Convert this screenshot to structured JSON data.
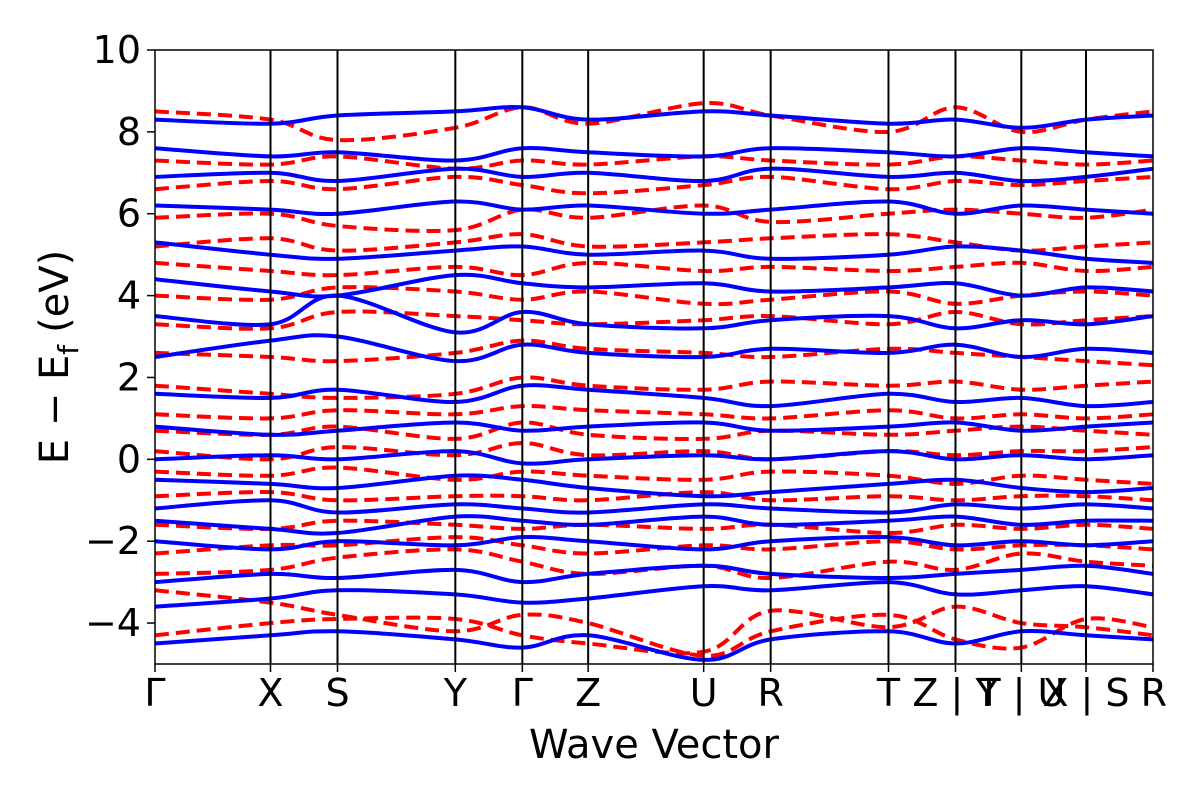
{
  "chart_data": {
    "type": "line",
    "xlabel": "Wave Vector",
    "ylabel": "E − E",
    "ylabel_subscript": "f",
    "ylabel_unit": "(eV)",
    "ylim": [
      -5,
      10
    ],
    "yticks": [
      {
        "value": -4,
        "label": "−4"
      },
      {
        "value": -2,
        "label": "−2"
      },
      {
        "value": 0,
        "label": "0"
      },
      {
        "value": 2,
        "label": "2"
      },
      {
        "value": 4,
        "label": "4"
      },
      {
        "value": 6,
        "label": "6"
      },
      {
        "value": 8,
        "label": "8"
      },
      {
        "value": 10,
        "label": "10"
      }
    ],
    "kpoints": [
      {
        "label": "Γ",
        "pos": 0.0
      },
      {
        "label": "X",
        "pos": 1.0
      },
      {
        "label": "S",
        "pos": 1.58
      },
      {
        "label": "Y",
        "pos": 2.6
      },
      {
        "label": "Γ",
        "pos": 3.18
      },
      {
        "label": "Z",
        "pos": 3.75
      },
      {
        "label": "U",
        "pos": 4.75
      },
      {
        "label": "R",
        "pos": 5.33
      },
      {
        "label": "T",
        "pos": 6.35
      },
      {
        "label": "Z | Y",
        "pos": 6.93
      },
      {
        "label": "T | U",
        "pos": 7.5
      },
      {
        "label": "X | S",
        "pos": 8.06
      },
      {
        "label": "R",
        "pos": 8.64
      }
    ],
    "series": [
      {
        "style": "dashed",
        "color": "#ff0000",
        "bands": [
          [
            -4.3,
            -4.0,
            -3.9,
            -3.9,
            -4.3,
            -4.5,
            -4.7,
            -3.7,
            -4.1,
            -3.6,
            -4.0,
            -4.1,
            -4.3
          ],
          [
            -3.2,
            -3.5,
            -3.8,
            -4.2,
            -3.8,
            -4.0,
            -4.8,
            -4.2,
            -3.8,
            -4.4,
            -4.6,
            -3.9,
            -4.1
          ],
          [
            -2.8,
            -2.7,
            -2.4,
            -2.2,
            -2.5,
            -2.8,
            -2.6,
            -2.9,
            -2.5,
            -2.7,
            -2.3,
            -2.5,
            -2.6
          ],
          [
            -2.3,
            -2.1,
            -2.1,
            -1.9,
            -2.1,
            -2.3,
            -2.1,
            -2.2,
            -2.0,
            -2.2,
            -2.1,
            -2.1,
            -2.2
          ],
          [
            -1.6,
            -1.7,
            -1.5,
            -1.6,
            -1.7,
            -1.6,
            -1.7,
            -1.6,
            -1.8,
            -1.6,
            -1.7,
            -1.6,
            -1.7
          ],
          [
            -0.9,
            -0.8,
            -1.0,
            -0.9,
            -0.9,
            -1.0,
            -0.8,
            -1.0,
            -0.9,
            -1.0,
            -0.9,
            -0.9,
            -1.0
          ],
          [
            -0.3,
            -0.4,
            -0.2,
            -0.5,
            -0.3,
            -0.4,
            -0.5,
            -0.3,
            -0.4,
            -0.6,
            -0.4,
            -0.5,
            -0.6
          ],
          [
            0.2,
            0.0,
            0.3,
            0.1,
            0.4,
            0.1,
            0.2,
            0.0,
            0.2,
            0.1,
            0.2,
            0.2,
            0.3
          ],
          [
            0.7,
            0.6,
            0.8,
            0.5,
            0.9,
            0.6,
            0.5,
            0.7,
            0.6,
            0.7,
            0.8,
            0.7,
            0.6
          ],
          [
            1.1,
            1.0,
            1.2,
            1.1,
            1.3,
            1.2,
            1.1,
            1.0,
            1.2,
            1.0,
            1.1,
            1.0,
            1.1
          ],
          [
            1.8,
            1.6,
            1.5,
            1.6,
            2.0,
            1.8,
            1.7,
            1.9,
            1.8,
            1.9,
            1.7,
            1.8,
            1.9
          ],
          [
            2.6,
            2.5,
            2.4,
            2.6,
            2.9,
            2.7,
            2.6,
            2.5,
            2.7,
            2.6,
            2.5,
            2.4,
            2.3
          ],
          [
            3.3,
            3.2,
            3.6,
            3.5,
            3.4,
            3.3,
            3.4,
            3.5,
            3.3,
            3.6,
            3.3,
            3.4,
            3.5
          ],
          [
            4.0,
            3.9,
            4.2,
            4.1,
            3.9,
            4.1,
            3.8,
            3.9,
            4.1,
            3.8,
            4.0,
            4.1,
            4.0
          ],
          [
            4.8,
            4.6,
            4.5,
            4.7,
            4.5,
            4.8,
            4.6,
            4.7,
            4.6,
            4.7,
            4.8,
            4.6,
            4.7
          ],
          [
            5.2,
            5.4,
            5.1,
            5.3,
            5.5,
            5.2,
            5.3,
            5.4,
            5.5,
            5.3,
            5.1,
            5.2,
            5.3
          ],
          [
            5.9,
            6.0,
            5.7,
            5.6,
            6.1,
            5.9,
            6.2,
            5.8,
            6.0,
            6.1,
            6.0,
            5.9,
            6.1
          ],
          [
            6.6,
            6.8,
            6.6,
            6.9,
            6.7,
            6.5,
            6.7,
            6.9,
            6.6,
            6.8,
            6.7,
            6.8,
            6.9
          ],
          [
            7.3,
            7.2,
            7.4,
            7.1,
            7.3,
            7.2,
            7.4,
            7.3,
            7.2,
            7.4,
            7.3,
            7.2,
            7.3
          ],
          [
            8.5,
            8.3,
            7.8,
            8.1,
            8.6,
            8.2,
            8.7,
            8.4,
            8.0,
            8.6,
            8.0,
            8.3,
            8.5
          ]
        ]
      },
      {
        "style": "solid",
        "color": "#0000ff",
        "bands": [
          [
            -4.5,
            -4.3,
            -4.2,
            -4.4,
            -4.6,
            -4.3,
            -4.9,
            -4.4,
            -4.2,
            -4.5,
            -4.2,
            -4.3,
            -4.4
          ],
          [
            -3.6,
            -3.4,
            -3.2,
            -3.3,
            -3.5,
            -3.4,
            -3.1,
            -3.2,
            -3.0,
            -3.3,
            -3.2,
            -3.1,
            -3.3
          ],
          [
            -3.0,
            -2.8,
            -2.9,
            -2.7,
            -3.0,
            -2.8,
            -2.6,
            -2.8,
            -2.9,
            -2.8,
            -2.7,
            -2.6,
            -2.8
          ],
          [
            -2.0,
            -2.2,
            -2.0,
            -2.1,
            -1.9,
            -2.0,
            -2.2,
            -2.0,
            -1.9,
            -2.1,
            -2.0,
            -2.1,
            -2.0
          ],
          [
            -1.5,
            -1.7,
            -1.8,
            -1.4,
            -1.5,
            -1.6,
            -1.4,
            -1.6,
            -1.5,
            -1.4,
            -1.6,
            -1.5,
            -1.5
          ],
          [
            -1.2,
            -1.0,
            -1.3,
            -1.1,
            -1.2,
            -1.3,
            -1.1,
            -1.2,
            -1.3,
            -1.1,
            -1.2,
            -1.1,
            -1.2
          ],
          [
            -0.5,
            -0.6,
            -0.7,
            -0.4,
            -0.5,
            -0.7,
            -0.9,
            -0.8,
            -0.6,
            -0.5,
            -0.7,
            -0.8,
            -0.7
          ],
          [
            0.0,
            0.1,
            0.0,
            0.2,
            -0.1,
            0.0,
            0.1,
            0.0,
            0.2,
            0.0,
            0.1,
            0.0,
            0.1
          ],
          [
            0.8,
            0.6,
            0.7,
            0.9,
            0.7,
            0.8,
            0.9,
            0.7,
            0.8,
            0.9,
            0.7,
            0.8,
            0.9
          ],
          [
            1.6,
            1.5,
            1.7,
            1.4,
            1.8,
            1.7,
            1.5,
            1.3,
            1.6,
            1.4,
            1.5,
            1.3,
            1.4
          ],
          [
            2.5,
            2.9,
            3.0,
            2.4,
            2.8,
            2.6,
            2.5,
            2.7,
            2.6,
            2.8,
            2.5,
            2.7,
            2.6
          ],
          [
            3.5,
            3.3,
            4.0,
            3.1,
            3.6,
            3.3,
            3.2,
            3.4,
            3.5,
            3.2,
            3.4,
            3.3,
            3.5
          ],
          [
            4.4,
            4.1,
            4.0,
            4.5,
            4.3,
            4.2,
            4.3,
            4.1,
            4.2,
            4.3,
            4.0,
            4.2,
            4.1
          ],
          [
            5.3,
            5.0,
            4.9,
            5.1,
            5.2,
            5.0,
            5.1,
            4.9,
            5.0,
            5.2,
            5.1,
            4.9,
            4.8
          ],
          [
            6.2,
            6.1,
            6.0,
            6.3,
            6.1,
            6.2,
            6.0,
            6.1,
            6.3,
            6.0,
            6.2,
            6.1,
            6.0
          ],
          [
            6.9,
            7.0,
            6.8,
            7.1,
            6.9,
            7.0,
            6.8,
            7.1,
            6.9,
            7.0,
            6.8,
            6.9,
            7.1
          ],
          [
            7.6,
            7.4,
            7.5,
            7.3,
            7.6,
            7.5,
            7.4,
            7.6,
            7.5,
            7.4,
            7.6,
            7.5,
            7.4
          ],
          [
            8.3,
            8.2,
            8.4,
            8.5,
            8.6,
            8.3,
            8.5,
            8.4,
            8.2,
            8.3,
            8.1,
            8.3,
            8.4
          ]
        ]
      }
    ]
  }
}
